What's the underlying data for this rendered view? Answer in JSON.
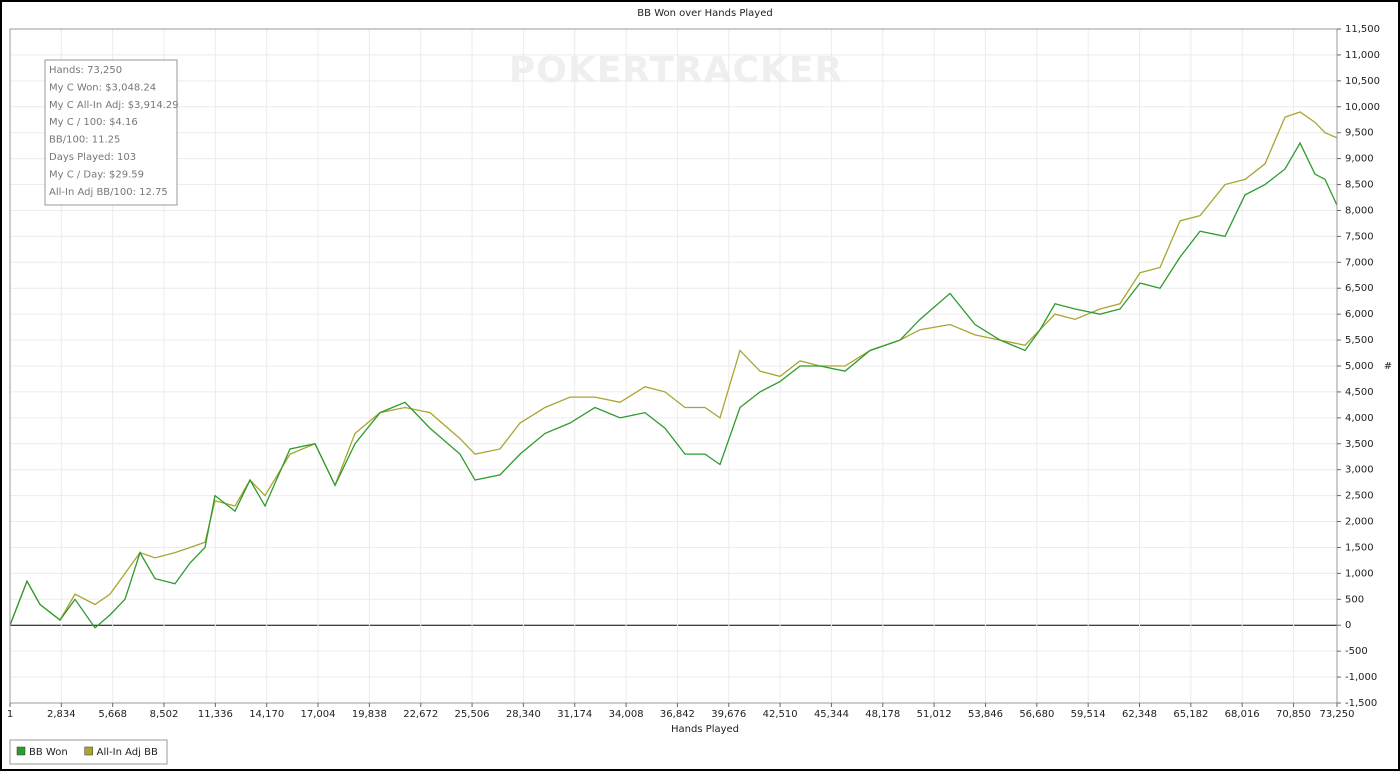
{
  "chart_data": {
    "type": "line",
    "title": "BB Won over Hands Played",
    "x_label": "Hands Played",
    "y_label": "#",
    "watermark": "POKERTRACKER",
    "stats": [
      "Hands: 73,250",
      "My C Won: $3,048.24",
      "My C All-In Adj: $3,914.29",
      "My C / 100: $4.16",
      "BB/100: 11.25",
      "Days Played: 103",
      "My C / Day: $29.59",
      "All-In Adj BB/100: 12.75"
    ],
    "grid": true,
    "legend": "bottom-left",
    "xlim": [
      1,
      73250
    ],
    "ylim": [
      -1500,
      11500
    ],
    "xticks": [
      1,
      {
        "value": 2834,
        "label": "2,834"
      },
      {
        "value": 5668,
        "label": "5,668"
      },
      {
        "value": 8502,
        "label": "8,502"
      },
      {
        "value": 11336,
        "label": "11,336"
      },
      {
        "value": 14170,
        "label": "14,170"
      },
      {
        "value": 17004,
        "label": "17,004"
      },
      {
        "value": 19838,
        "label": "19,838"
      },
      {
        "value": 22672,
        "label": "22,672"
      },
      {
        "value": 25506,
        "label": "25,506"
      },
      {
        "value": 28340,
        "label": "28,340"
      },
      {
        "value": 31174,
        "label": "31,174"
      },
      {
        "value": 34008,
        "label": "34,008"
      },
      {
        "value": 36842,
        "label": "36,842"
      },
      {
        "value": 39676,
        "label": "39,676"
      },
      {
        "value": 42510,
        "label": "42,510"
      },
      {
        "value": 45344,
        "label": "45,344"
      },
      {
        "value": 48178,
        "label": "48,178"
      },
      {
        "value": 51012,
        "label": "51,012"
      },
      {
        "value": 53846,
        "label": "53,846"
      },
      {
        "value": 56680,
        "label": "56,680"
      },
      {
        "value": 59514,
        "label": "59,514"
      },
      {
        "value": 62348,
        "label": "62,348"
      },
      {
        "value": 65182,
        "label": "65,182"
      },
      {
        "value": 68016,
        "label": "68,016"
      },
      {
        "value": 70850,
        "label": "70,850"
      },
      {
        "value": 73250,
        "label": "73,250"
      }
    ],
    "yticks": [
      {
        "value": -1500,
        "label": "-1,500"
      },
      {
        "value": -1000,
        "label": "-1,000"
      },
      -500,
      0,
      500,
      {
        "value": 1000,
        "label": "1,000"
      },
      {
        "value": 1500,
        "label": "1,500"
      },
      {
        "value": 2000,
        "label": "2,000"
      },
      {
        "value": 2500,
        "label": "2,500"
      },
      {
        "value": 3000,
        "label": "3,000"
      },
      {
        "value": 3500,
        "label": "3,500"
      },
      {
        "value": 4000,
        "label": "4,000"
      },
      {
        "value": 4500,
        "label": "4,500"
      },
      {
        "value": 5000,
        "label": "5,000"
      },
      {
        "value": 5500,
        "label": "5,500"
      },
      {
        "value": 6000,
        "label": "6,000"
      },
      {
        "value": 6500,
        "label": "6,500"
      },
      {
        "value": 7000,
        "label": "7,000"
      },
      {
        "value": 7500,
        "label": "7,500"
      },
      {
        "value": 8000,
        "label": "8,000"
      },
      {
        "value": 8500,
        "label": "8,500"
      },
      {
        "value": 9000,
        "label": "9,000"
      },
      {
        "value": 9500,
        "label": "9,500"
      },
      {
        "value": 10000,
        "label": "10,000"
      },
      {
        "value": 10500,
        "label": "10,500"
      },
      {
        "value": 11000,
        "label": "11,000"
      },
      {
        "value": 11500,
        "label": "11,500"
      }
    ],
    "x": [
      1,
      939,
      1657,
      2761,
      3589,
      4693,
      5521,
      6349,
      7177,
      8005,
      9109,
      9937,
      10765,
      11317,
      12421,
      13249,
      14077,
      15457,
      16837,
      17941,
      19045,
      20425,
      21805,
      23185,
      24841,
      25669,
      27049,
      28153,
      29533,
      30913,
      32293,
      33673,
      35053,
      36157,
      37261,
      38365,
      39193,
      40297,
      41401,
      42505,
      43609,
      44713,
      46093,
      47473,
      49129,
      50233,
      51889,
      53269,
      54649,
      56029,
      56857,
      57685,
      58789,
      60169,
      61273,
      62377,
      63481,
      64585,
      65689,
      67069,
      68173,
      69277,
      70381,
      71209,
      72037,
      72589,
      73250
    ],
    "series": [
      {
        "name": "BB Won",
        "color": "#2e9b2e",
        "values": [
          0,
          850,
          400,
          100,
          500,
          -50,
          200,
          500,
          1400,
          900,
          800,
          1200,
          1500,
          2500,
          2200,
          2800,
          2300,
          3400,
          3500,
          2700,
          3500,
          4100,
          4300,
          3800,
          3300,
          2800,
          2900,
          3300,
          3700,
          3900,
          4200,
          4000,
          4100,
          3800,
          3300,
          3300,
          3100,
          4200,
          4500,
          4700,
          5000,
          5000,
          4900,
          5300,
          5500,
          5900,
          6400,
          5800,
          5500,
          5300,
          5700,
          6200,
          6100,
          6000,
          6100,
          6600,
          6500,
          7100,
          7600,
          7500,
          8300,
          8500,
          8800,
          9300,
          8700,
          8600,
          8100
        ]
      },
      {
        "name": "All-In Adj BB",
        "color": "#a9a530",
        "values": [
          0,
          850,
          400,
          100,
          600,
          400,
          600,
          1000,
          1400,
          1300,
          1400,
          1500,
          1600,
          2400,
          2300,
          2800,
          2500,
          3300,
          3500,
          2700,
          3700,
          4100,
          4200,
          4100,
          3600,
          3300,
          3400,
          3900,
          4200,
          4400,
          4400,
          4300,
          4600,
          4500,
          4200,
          4200,
          4000,
          5300,
          4900,
          4800,
          5100,
          5000,
          5000,
          5300,
          5500,
          5700,
          5800,
          5600,
          5500,
          5400,
          5700,
          6000,
          5900,
          6100,
          6200,
          6800,
          6900,
          7800,
          7900,
          8500,
          8600,
          8900,
          9800,
          9900,
          9700,
          9500,
          9400
        ]
      }
    ]
  }
}
